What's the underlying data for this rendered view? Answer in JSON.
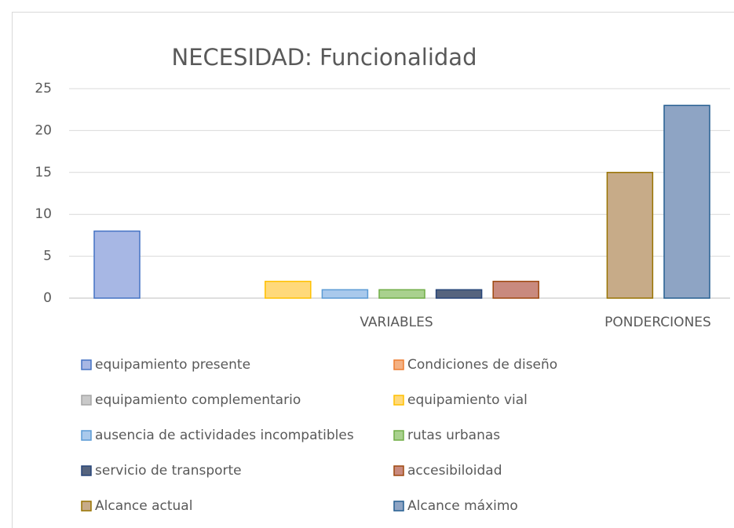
{
  "chart_data": {
    "type": "bar",
    "title": "NECESIDAD: Funcionalidad",
    "categories": [
      "VARIABLES",
      "PONDERCIONES"
    ],
    "ylim": [
      0,
      25
    ],
    "yticks": [
      0,
      5,
      10,
      15,
      20,
      25
    ],
    "grid": true,
    "series": [
      {
        "name": "equipamiento presente",
        "color": "#a7b7e4",
        "edge": "#4472c4",
        "values": [
          8,
          null
        ]
      },
      {
        "name": "Condiciones de diseño",
        "color": "#f4b183",
        "edge": "#ed7d31",
        "values": [
          0,
          null
        ]
      },
      {
        "name": "equipamiento complementario",
        "color": "#c9c9c9",
        "edge": "#a5a5a5",
        "values": [
          0,
          null
        ]
      },
      {
        "name": "equipamiento vial",
        "color": "#ffd97a",
        "edge": "#ffc000",
        "values": [
          2,
          null
        ]
      },
      {
        "name": "ausencia de actividades incompatibles",
        "color": "#a9c9ec",
        "edge": "#5b9bd5",
        "values": [
          1,
          null
        ]
      },
      {
        "name": "rutas urbanas",
        "color": "#a9d18e",
        "edge": "#70ad47",
        "values": [
          1,
          null
        ]
      },
      {
        "name": "servicio de transporte",
        "color": "#56647e",
        "edge": "#264478",
        "values": [
          1,
          null
        ]
      },
      {
        "name": "accesibiloidad",
        "color": "#c98a7e",
        "edge": "#9e480e",
        "values": [
          2,
          null
        ]
      },
      {
        "name": "Alcance actual",
        "color": "#c7ab88",
        "edge": "#997300",
        "values": [
          null,
          15
        ]
      },
      {
        "name": "Alcance máximo",
        "color": "#8ea4c4",
        "edge": "#255e91",
        "values": [
          null,
          23
        ]
      }
    ]
  }
}
